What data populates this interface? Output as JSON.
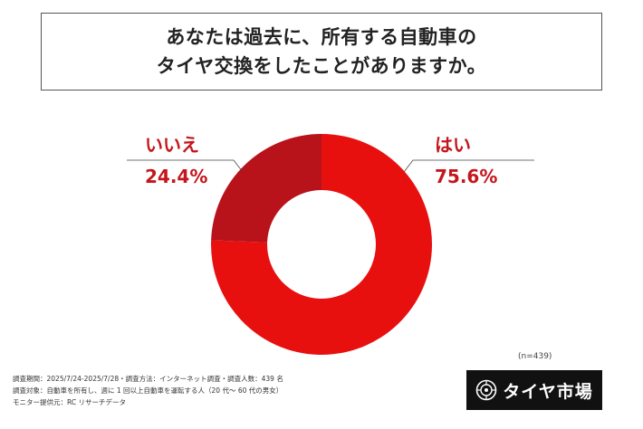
{
  "title": {
    "line1": "あなたは過去に、所有する自動車の",
    "line2": "タイヤ交換をしたことがありますか。"
  },
  "chart_data": {
    "type": "pie",
    "donut": true,
    "slices": [
      {
        "name": "はい",
        "value": 75.6,
        "label": "75.6%",
        "color": "#e8100f"
      },
      {
        "name": "いいえ",
        "value": 24.4,
        "label": "24.4%",
        "color": "#b8121b"
      }
    ],
    "sample_note": "(n=439)"
  },
  "footer": {
    "line1": "調査期間：2025/7/24-2025/7/28・調査方法：インターネット調査・調査人数：439 名",
    "line2": "調査対象：自動車を所有し、週に 1 回以上自動車を運転する人（20 代～ 60 代の男女）",
    "line3": "モニター提供元：RC リサーチデータ"
  },
  "logo": {
    "text": "タイヤ市場",
    "icon": "tire-icon"
  }
}
